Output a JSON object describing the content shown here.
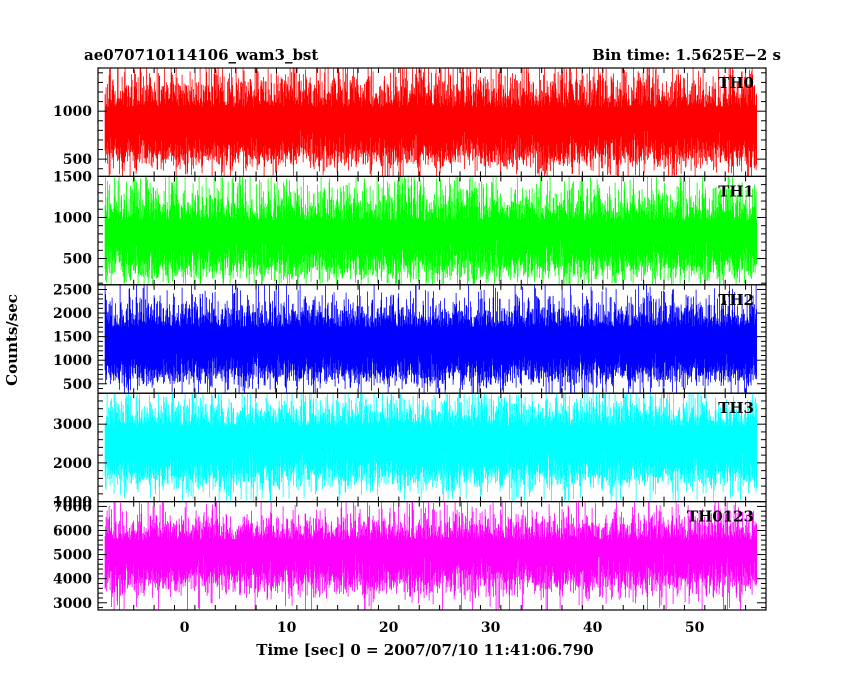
{
  "chart_data": {
    "type": "line",
    "title": "ae070710114106_wam3_bst",
    "bin_time_label": "Bin time: 1.5625E−2 s",
    "xlabel": "Time [sec] 0 = 2007/07/10 11:41:06.790",
    "ylabel": "Counts/sec",
    "xlim": [
      -8.5,
      57
    ],
    "x_data_range": [
      -7.8,
      56.1
    ],
    "x_ticks": [
      0,
      10,
      20,
      30,
      40,
      50
    ],
    "x_tick_labels": [
      "0",
      "10",
      "20",
      "30",
      "40",
      "50"
    ],
    "grid": false,
    "panels": [
      {
        "name": "TH0",
        "color": "#ff0000",
        "ylim": [
          320,
          1450
        ],
        "y_ticks": [
          500,
          1000
        ],
        "y_tick_labels": [
          "500",
          "1000"
        ],
        "signal": {
          "low_mean": 540,
          "low_spread": 90,
          "high_mean": 1040,
          "high_spread": 220,
          "min": 320,
          "max": 1450
        }
      },
      {
        "name": "TH1",
        "color": "#00ff00",
        "ylim": [
          180,
          1500
        ],
        "y_ticks": [
          500,
          1000,
          1500
        ],
        "y_tick_labels": [
          "500",
          "1000",
          "1500"
        ],
        "signal": {
          "low_mean": 400,
          "low_spread": 110,
          "high_mean": 960,
          "high_spread": 260,
          "min": 180,
          "max": 1500
        }
      },
      {
        "name": "TH2",
        "color": "#0000ff",
        "ylim": [
          300,
          2600
        ],
        "y_ticks": [
          500,
          1000,
          1500,
          2000,
          2500
        ],
        "y_tick_labels": [
          "500",
          "1000",
          "1500",
          "2000",
          "2500"
        ],
        "signal": {
          "low_mean": 700,
          "low_spread": 170,
          "high_mean": 1700,
          "high_spread": 350,
          "min": 300,
          "max": 2600
        }
      },
      {
        "name": "TH3",
        "color": "#00ffff",
        "ylim": [
          1000,
          3800
        ],
        "y_ticks": [
          1000,
          2000,
          3000
        ],
        "y_tick_labels": [
          "1000",
          "2000",
          "3000"
        ],
        "signal": {
          "low_mean": 1650,
          "low_spread": 230,
          "high_mean": 2950,
          "high_spread": 450,
          "min": 1000,
          "max": 3800
        }
      },
      {
        "name": "TH0123",
        "color": "#ff00ff",
        "ylim": [
          2700,
          7200
        ],
        "y_ticks": [
          3000,
          4000,
          5000,
          6000,
          7000
        ],
        "y_tick_labels": [
          "3000",
          "4000",
          "5000",
          "6000",
          "7000"
        ],
        "signal": {
          "low_mean": 3900,
          "low_spread": 380,
          "high_mean": 5600,
          "high_spread": 650,
          "min": 2700,
          "max": 7200
        }
      }
    ]
  }
}
